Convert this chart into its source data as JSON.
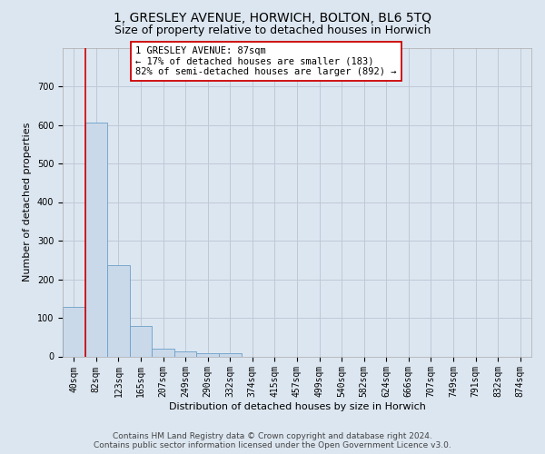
{
  "title": "1, GRESLEY AVENUE, HORWICH, BOLTON, BL6 5TQ",
  "subtitle": "Size of property relative to detached houses in Horwich",
  "xlabel": "Distribution of detached houses by size in Horwich",
  "ylabel": "Number of detached properties",
  "bin_labels": [
    "40sqm",
    "82sqm",
    "123sqm",
    "165sqm",
    "207sqm",
    "249sqm",
    "290sqm",
    "332sqm",
    "374sqm",
    "415sqm",
    "457sqm",
    "499sqm",
    "540sqm",
    "582sqm",
    "624sqm",
    "666sqm",
    "707sqm",
    "749sqm",
    "791sqm",
    "832sqm",
    "874sqm"
  ],
  "bar_values": [
    128,
    607,
    236,
    80,
    20,
    13,
    8,
    8,
    0,
    0,
    0,
    0,
    0,
    0,
    0,
    0,
    0,
    0,
    0,
    0,
    0
  ],
  "bar_color": "#c9d9ea",
  "bar_edge_color": "#6b9fc8",
  "vline_color": "#cc0000",
  "annotation_text": "1 GRESLEY AVENUE: 87sqm\n← 17% of detached houses are smaller (183)\n82% of semi-detached houses are larger (892) →",
  "annotation_box_color": "white",
  "annotation_box_edge_color": "#cc0000",
  "ylim_max": 800,
  "yticks": [
    0,
    100,
    200,
    300,
    400,
    500,
    600,
    700
  ],
  "grid_color": "#c0c8d8",
  "background_color": "#dce6f0",
  "footer_line1": "Contains HM Land Registry data © Crown copyright and database right 2024.",
  "footer_line2": "Contains public sector information licensed under the Open Government Licence v3.0.",
  "title_fontsize": 10,
  "subtitle_fontsize": 9,
  "axis_label_fontsize": 8,
  "tick_fontsize": 7,
  "annotation_fontsize": 7.5,
  "footer_fontsize": 6.5
}
